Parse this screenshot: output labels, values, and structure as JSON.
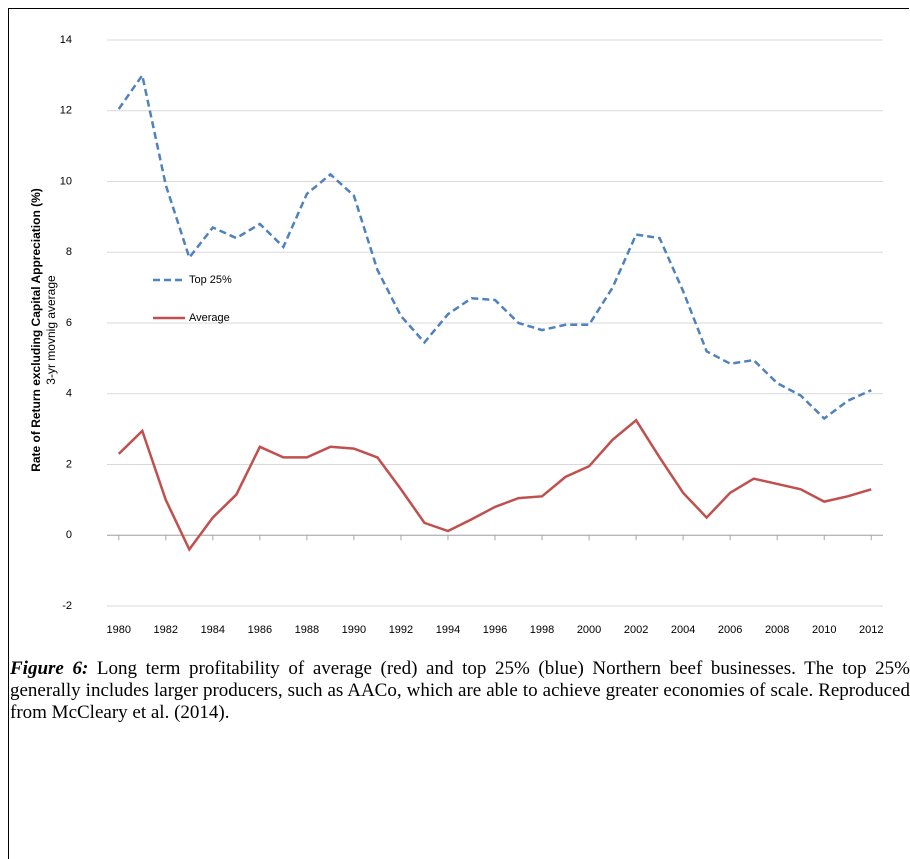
{
  "chart_data": {
    "type": "line",
    "y_label": "Rate of Return excluding Capital Appreciation (%)",
    "y_sublabel": "3-yr movnig average",
    "x": [
      1980,
      1981,
      1982,
      1983,
      1984,
      1985,
      1986,
      1987,
      1988,
      1989,
      1990,
      1991,
      1992,
      1993,
      1994,
      1995,
      1996,
      1997,
      1998,
      1999,
      2000,
      2001,
      2002,
      2003,
      2004,
      2005,
      2006,
      2007,
      2008,
      2009,
      2010,
      2011,
      2012
    ],
    "series": [
      {
        "name": "Top 25%",
        "color": "#4f81bd",
        "line_style": "dashed",
        "values": [
          12.05,
          13.0,
          9.9,
          7.85,
          8.7,
          8.4,
          8.8,
          8.15,
          9.65,
          10.2,
          9.6,
          7.5,
          6.2,
          5.45,
          6.25,
          6.7,
          6.65,
          6.0,
          5.8,
          5.95,
          5.95,
          7.0,
          8.5,
          8.4,
          6.9,
          5.2,
          4.85,
          4.95,
          4.3,
          3.95,
          3.3,
          3.8,
          4.1
        ]
      },
      {
        "name": "Average",
        "color": "#c0504d",
        "line_style": "solid",
        "values": [
          2.3,
          2.95,
          1.0,
          -0.4,
          0.5,
          1.15,
          2.5,
          2.2,
          2.2,
          2.5,
          2.45,
          2.2,
          1.3,
          0.35,
          0.12,
          0.45,
          0.8,
          1.05,
          1.1,
          1.65,
          1.95,
          2.7,
          3.25,
          2.2,
          1.2,
          0.5,
          1.2,
          1.6,
          1.45,
          1.3,
          0.95,
          1.1,
          1.3
        ]
      }
    ],
    "xlim": [
      1979.5,
      2012.5
    ],
    "xticks": [
      1980,
      1982,
      1984,
      1986,
      1988,
      1990,
      1992,
      1994,
      1996,
      1998,
      2000,
      2002,
      2004,
      2006,
      2008,
      2010,
      2012
    ],
    "ylim": [
      -2,
      14
    ],
    "yticks": [
      -2,
      0,
      2,
      4,
      6,
      8,
      10,
      12,
      14
    ],
    "grid": true,
    "legend": "left"
  },
  "caption": {
    "label": "Figure 6:",
    "text": "Long term profitability of average (red) and top 25% (blue) Northern beef businesses. The top 25% generally includes larger producers, such as AACo, which are able to achieve greater economies of scale. Reproduced from McCleary et al. (2014)."
  }
}
